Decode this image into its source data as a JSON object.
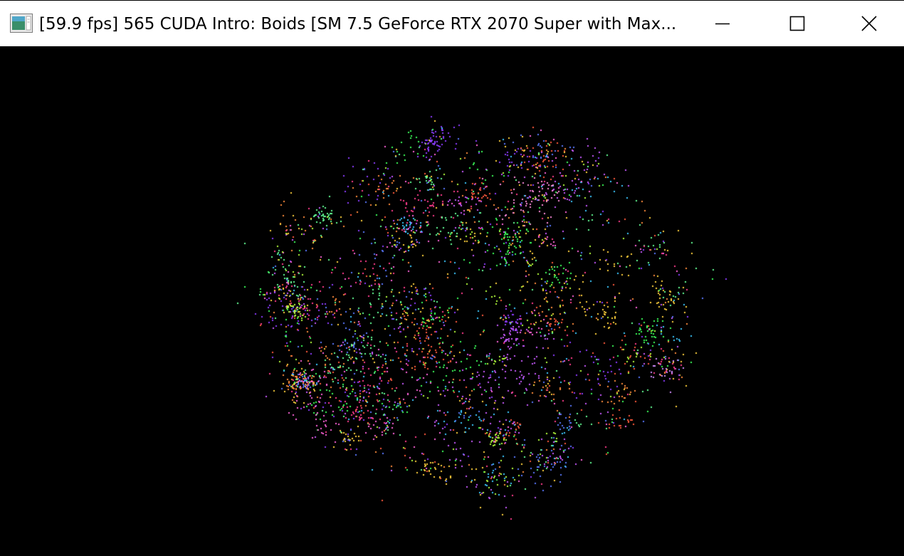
{
  "window": {
    "title": "[59.9 fps] 565 CUDA Intro: Boids [SM 7.5 GeForce RTX 2070 Super with Max...",
    "app_icon": "opengl-app-icon",
    "controls": {
      "minimize_icon": "minimize-icon",
      "maximize_icon": "maximize-icon",
      "close_icon": "close-icon"
    }
  },
  "viewport": {
    "background": "#000000",
    "boid_palette": [
      "#ff3c8c",
      "#ff5a3c",
      "#3cff5a",
      "#5a78ff",
      "#c85aff",
      "#ff64dc",
      "#64ff96",
      "#ffd23c",
      "#3cc8ff",
      "#ff8c3c",
      "#b4ff3c",
      "#8c3cff"
    ]
  }
}
